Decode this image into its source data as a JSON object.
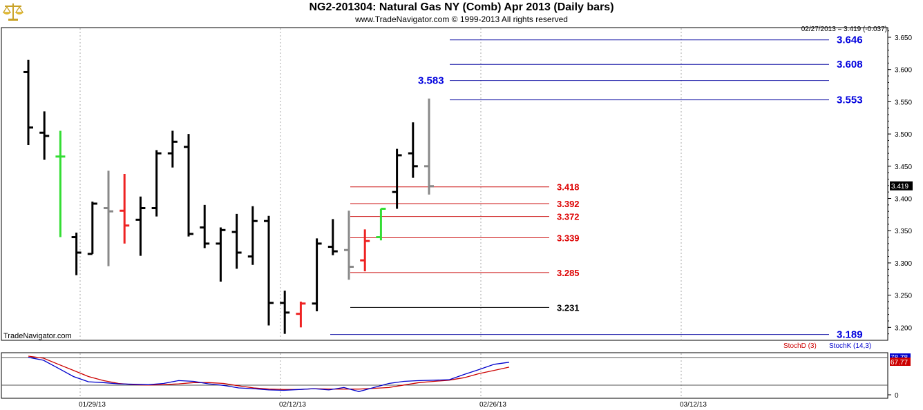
{
  "header": {
    "title": "NG2-201304:  Natural Gas NY (Comb) Apr 2013  (Daily bars)",
    "subtitle": "www.TradeNavigator.com © 1999-2013 All rights reserved",
    "readout": "02/27/2013 = 3.419 (-0.037)",
    "watermark": "TradeNavigator.com",
    "logo_icon": "scales-icon"
  },
  "chart_data": [
    {
      "type": "ohlc",
      "title": "NG2-201304:  Natural Gas NY (Comb) Apr 2013  (Daily bars)",
      "ylim": [
        3.18,
        3.665
      ],
      "y_ticks": [
        "3.650",
        "3.600",
        "3.550",
        "3.500",
        "3.450",
        "3.400",
        "3.350",
        "3.300",
        "3.250",
        "3.200"
      ],
      "last_price_label": "3.419",
      "bars": [
        {
          "o": 3.596,
          "h": 3.615,
          "l": 3.483,
          "c": 3.51,
          "color": "#000000"
        },
        {
          "o": 3.502,
          "h": 3.535,
          "l": 3.46,
          "c": 3.497,
          "color": "#000000"
        },
        {
          "o": 3.465,
          "h": 3.505,
          "l": 3.34,
          "c": 3.465,
          "color": "#33dd33"
        },
        {
          "o": 3.34,
          "h": 3.347,
          "l": 3.281,
          "c": 3.316,
          "color": "#000000"
        },
        {
          "o": 3.314,
          "h": 3.395,
          "l": 3.314,
          "c": 3.392,
          "color": "#000000"
        },
        {
          "o": 3.385,
          "h": 3.443,
          "l": 3.295,
          "c": 3.38,
          "color": "#888888"
        },
        {
          "o": 3.381,
          "h": 3.438,
          "l": 3.33,
          "c": 3.358,
          "color": "#ee2222"
        },
        {
          "o": 3.367,
          "h": 3.403,
          "l": 3.311,
          "c": 3.385,
          "color": "#000000"
        },
        {
          "o": 3.385,
          "h": 3.475,
          "l": 3.372,
          "c": 3.47,
          "color": "#000000"
        },
        {
          "o": 3.47,
          "h": 3.505,
          "l": 3.448,
          "c": 3.488,
          "color": "#000000"
        },
        {
          "o": 3.48,
          "h": 3.5,
          "l": 3.341,
          "c": 3.345,
          "color": "#000000"
        },
        {
          "o": 3.355,
          "h": 3.39,
          "l": 3.323,
          "c": 3.33,
          "color": "#000000"
        },
        {
          "o": 3.33,
          "h": 3.355,
          "l": 3.271,
          "c": 3.351,
          "color": "#000000"
        },
        {
          "o": 3.348,
          "h": 3.376,
          "l": 3.291,
          "c": 3.316,
          "color": "#000000"
        },
        {
          "o": 3.31,
          "h": 3.388,
          "l": 3.297,
          "c": 3.365,
          "color": "#000000"
        },
        {
          "o": 3.365,
          "h": 3.373,
          "l": 3.203,
          "c": 3.238,
          "color": "#000000"
        },
        {
          "o": 3.238,
          "h": 3.257,
          "l": 3.19,
          "c": 3.223,
          "color": "#000000"
        },
        {
          "o": 3.221,
          "h": 3.24,
          "l": 3.2,
          "c": 3.237,
          "color": "#ee2222"
        },
        {
          "o": 3.237,
          "h": 3.338,
          "l": 3.225,
          "c": 3.33,
          "color": "#000000"
        },
        {
          "o": 3.325,
          "h": 3.368,
          "l": 3.312,
          "c": 3.318,
          "color": "#000000"
        },
        {
          "o": 3.32,
          "h": 3.381,
          "l": 3.274,
          "c": 3.294,
          "color": "#888888"
        },
        {
          "o": 3.304,
          "h": 3.352,
          "l": 3.287,
          "c": 3.334,
          "color": "#ee2222"
        },
        {
          "o": 3.34,
          "h": 3.384,
          "l": 3.335,
          "c": 3.384,
          "color": "#33dd33"
        },
        {
          "o": 3.41,
          "h": 3.477,
          "l": 3.384,
          "c": 3.467,
          "color": "#000000"
        },
        {
          "o": 3.47,
          "h": 3.518,
          "l": 3.432,
          "c": 3.45,
          "color": "#000000"
        },
        {
          "o": 3.45,
          "h": 3.555,
          "l": 3.406,
          "c": 3.419,
          "color": "#888888"
        }
      ],
      "levels": [
        {
          "value": 3.646,
          "label": "3.646",
          "color": "#1a1aa8",
          "label_color": "#0000dd"
        },
        {
          "value": 3.608,
          "label": "3.608",
          "color": "#1a1aa8",
          "label_color": "#0000dd"
        },
        {
          "value": 3.583,
          "label": "3.583",
          "color": "#1a1aa8",
          "label_color": "#0000dd"
        },
        {
          "value": 3.553,
          "label": "3.553",
          "color": "#1a1aa8",
          "label_color": "#0000dd"
        },
        {
          "value": 3.418,
          "label": "3.418",
          "color": "#cc1111",
          "label_color": "#dd0000"
        },
        {
          "value": 3.392,
          "label": "3.392",
          "color": "#cc1111",
          "label_color": "#dd0000"
        },
        {
          "value": 3.372,
          "label": "3.372",
          "color": "#cc1111",
          "label_color": "#dd0000"
        },
        {
          "value": 3.339,
          "label": "3.339",
          "color": "#cc1111",
          "label_color": "#dd0000"
        },
        {
          "value": 3.285,
          "label": "3.285",
          "color": "#cc1111",
          "label_color": "#dd0000"
        },
        {
          "value": 3.231,
          "label": "3.231",
          "color": "#000000",
          "label_color": "#000000"
        },
        {
          "value": 3.189,
          "label": "3.189",
          "color": "#1a1aa8",
          "label_color": "#0000dd"
        }
      ]
    },
    {
      "type": "line",
      "ylim": [
        0,
        100
      ],
      "y_ticks": [
        "0"
      ],
      "x_tick_labels": [
        "01/29/13",
        "02/12/13",
        "02/26/13",
        "03/12/13"
      ],
      "value_labels": [
        "78.78",
        "67.77"
      ],
      "series": [
        {
          "name": "StochD (3)",
          "color": "#cc0000",
          "values": [
            95,
            90,
            75,
            60,
            45,
            35,
            28,
            25,
            24,
            25,
            27,
            30,
            30,
            28,
            22,
            17,
            14,
            13,
            13,
            15,
            14,
            14,
            14,
            16,
            18,
            24,
            30,
            33,
            36,
            42,
            52,
            60,
            68
          ]
        },
        {
          "name": "StochK (14,3)",
          "color": "#0000cc",
          "values": [
            92,
            85,
            65,
            45,
            32,
            30,
            27,
            26,
            25,
            28,
            35,
            33,
            27,
            23,
            17,
            15,
            12,
            11,
            13,
            15,
            12,
            18,
            8,
            18,
            28,
            33,
            35,
            36,
            37,
            50,
            62,
            75,
            80
          ]
        }
      ]
    }
  ]
}
